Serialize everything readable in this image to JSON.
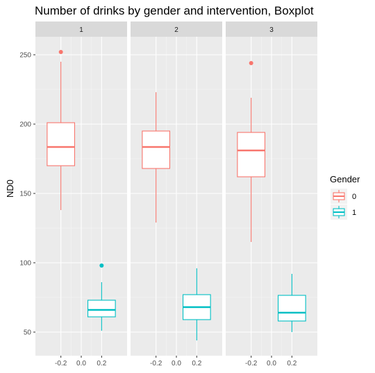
{
  "chart_data": {
    "type": "boxplot",
    "title": "Number of drinks by gender and intervention, Boxplot",
    "ylabel": "ND0",
    "xlabel": "",
    "ylim": [
      33,
      263
    ],
    "xlim": [
      -0.45,
      0.45
    ],
    "yticks": [
      50,
      100,
      150,
      200,
      250
    ],
    "xticks": [
      -0.2,
      0.0,
      0.2
    ],
    "xtick_labels": [
      "-0.2",
      "0.0",
      "0.2"
    ],
    "ytick_labels": [
      "50",
      "100",
      "150",
      "200",
      "250"
    ],
    "grid": true,
    "legend": {
      "title": "Gender",
      "position": "right",
      "entries": [
        {
          "label": "0",
          "color": "#F8766D"
        },
        {
          "label": "1",
          "color": "#00BFC4"
        }
      ]
    },
    "panels": [
      {
        "label": "1",
        "boxes": [
          {
            "group": "0",
            "x": -0.2,
            "lower_whisker": 138,
            "q1": 170,
            "median": 183.5,
            "q3": 201,
            "upper_whisker": 245,
            "outliers": [
              252
            ]
          },
          {
            "group": "1",
            "x": 0.2,
            "lower_whisker": 51,
            "q1": 61,
            "median": 66,
            "q3": 73,
            "upper_whisker": 86,
            "outliers": [
              98
            ]
          }
        ]
      },
      {
        "label": "2",
        "boxes": [
          {
            "group": "0",
            "x": -0.2,
            "lower_whisker": 129,
            "q1": 168,
            "median": 183.5,
            "q3": 195,
            "upper_whisker": 223,
            "outliers": []
          },
          {
            "group": "1",
            "x": 0.2,
            "lower_whisker": 44,
            "q1": 59,
            "median": 68,
            "q3": 77,
            "upper_whisker": 96,
            "outliers": []
          }
        ]
      },
      {
        "label": "3",
        "boxes": [
          {
            "group": "0",
            "x": -0.2,
            "lower_whisker": 115,
            "q1": 162,
            "median": 181,
            "q3": 194,
            "upper_whisker": 219,
            "outliers": [
              244
            ]
          },
          {
            "group": "1",
            "x": 0.2,
            "lower_whisker": 50,
            "q1": 58,
            "median": 64,
            "q3": 76.5,
            "upper_whisker": 92,
            "outliers": []
          }
        ]
      }
    ],
    "colors": {
      "panel_background": "#EBEBEB",
      "strip_background": "#D9D9D9",
      "grid_major": "#FFFFFF"
    }
  }
}
